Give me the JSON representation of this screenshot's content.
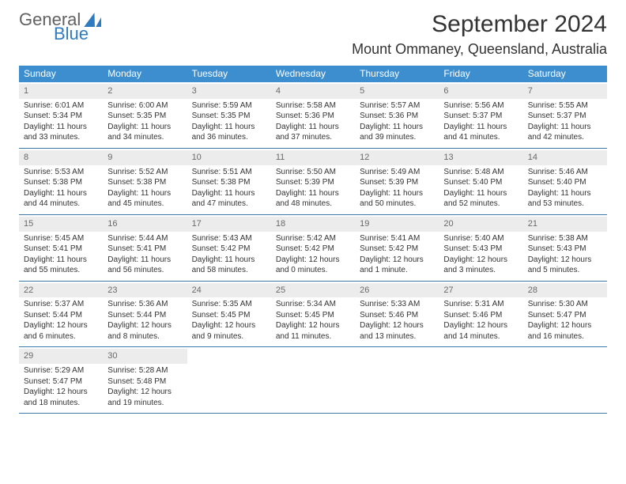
{
  "brand": {
    "word1": "General",
    "word2": "Blue"
  },
  "title": "September 2024",
  "location": "Mount Ommaney, Queensland, Australia",
  "colors": {
    "header_bg": "#3d8ecf",
    "header_text": "#ffffff",
    "band_bg": "#ececec",
    "band_text": "#696969",
    "rule": "#3d78a8",
    "body_text": "#333333",
    "logo_gray": "#616161",
    "logo_blue": "#2f7bbf"
  },
  "font_sizes": {
    "title": 30,
    "subtitle": 18,
    "header": 12,
    "daynum": 11,
    "body": 10
  },
  "weekday_labels": [
    "Sunday",
    "Monday",
    "Tuesday",
    "Wednesday",
    "Thursday",
    "Friday",
    "Saturday"
  ],
  "weeks": [
    [
      {
        "n": "1",
        "sr": "Sunrise: 6:01 AM",
        "ss": "Sunset: 5:34 PM",
        "d1": "Daylight: 11 hours",
        "d2": "and 33 minutes."
      },
      {
        "n": "2",
        "sr": "Sunrise: 6:00 AM",
        "ss": "Sunset: 5:35 PM",
        "d1": "Daylight: 11 hours",
        "d2": "and 34 minutes."
      },
      {
        "n": "3",
        "sr": "Sunrise: 5:59 AM",
        "ss": "Sunset: 5:35 PM",
        "d1": "Daylight: 11 hours",
        "d2": "and 36 minutes."
      },
      {
        "n": "4",
        "sr": "Sunrise: 5:58 AM",
        "ss": "Sunset: 5:36 PM",
        "d1": "Daylight: 11 hours",
        "d2": "and 37 minutes."
      },
      {
        "n": "5",
        "sr": "Sunrise: 5:57 AM",
        "ss": "Sunset: 5:36 PM",
        "d1": "Daylight: 11 hours",
        "d2": "and 39 minutes."
      },
      {
        "n": "6",
        "sr": "Sunrise: 5:56 AM",
        "ss": "Sunset: 5:37 PM",
        "d1": "Daylight: 11 hours",
        "d2": "and 41 minutes."
      },
      {
        "n": "7",
        "sr": "Sunrise: 5:55 AM",
        "ss": "Sunset: 5:37 PM",
        "d1": "Daylight: 11 hours",
        "d2": "and 42 minutes."
      }
    ],
    [
      {
        "n": "8",
        "sr": "Sunrise: 5:53 AM",
        "ss": "Sunset: 5:38 PM",
        "d1": "Daylight: 11 hours",
        "d2": "and 44 minutes."
      },
      {
        "n": "9",
        "sr": "Sunrise: 5:52 AM",
        "ss": "Sunset: 5:38 PM",
        "d1": "Daylight: 11 hours",
        "d2": "and 45 minutes."
      },
      {
        "n": "10",
        "sr": "Sunrise: 5:51 AM",
        "ss": "Sunset: 5:38 PM",
        "d1": "Daylight: 11 hours",
        "d2": "and 47 minutes."
      },
      {
        "n": "11",
        "sr": "Sunrise: 5:50 AM",
        "ss": "Sunset: 5:39 PM",
        "d1": "Daylight: 11 hours",
        "d2": "and 48 minutes."
      },
      {
        "n": "12",
        "sr": "Sunrise: 5:49 AM",
        "ss": "Sunset: 5:39 PM",
        "d1": "Daylight: 11 hours",
        "d2": "and 50 minutes."
      },
      {
        "n": "13",
        "sr": "Sunrise: 5:48 AM",
        "ss": "Sunset: 5:40 PM",
        "d1": "Daylight: 11 hours",
        "d2": "and 52 minutes."
      },
      {
        "n": "14",
        "sr": "Sunrise: 5:46 AM",
        "ss": "Sunset: 5:40 PM",
        "d1": "Daylight: 11 hours",
        "d2": "and 53 minutes."
      }
    ],
    [
      {
        "n": "15",
        "sr": "Sunrise: 5:45 AM",
        "ss": "Sunset: 5:41 PM",
        "d1": "Daylight: 11 hours",
        "d2": "and 55 minutes."
      },
      {
        "n": "16",
        "sr": "Sunrise: 5:44 AM",
        "ss": "Sunset: 5:41 PM",
        "d1": "Daylight: 11 hours",
        "d2": "and 56 minutes."
      },
      {
        "n": "17",
        "sr": "Sunrise: 5:43 AM",
        "ss": "Sunset: 5:42 PM",
        "d1": "Daylight: 11 hours",
        "d2": "and 58 minutes."
      },
      {
        "n": "18",
        "sr": "Sunrise: 5:42 AM",
        "ss": "Sunset: 5:42 PM",
        "d1": "Daylight: 12 hours",
        "d2": "and 0 minutes."
      },
      {
        "n": "19",
        "sr": "Sunrise: 5:41 AM",
        "ss": "Sunset: 5:42 PM",
        "d1": "Daylight: 12 hours",
        "d2": "and 1 minute."
      },
      {
        "n": "20",
        "sr": "Sunrise: 5:40 AM",
        "ss": "Sunset: 5:43 PM",
        "d1": "Daylight: 12 hours",
        "d2": "and 3 minutes."
      },
      {
        "n": "21",
        "sr": "Sunrise: 5:38 AM",
        "ss": "Sunset: 5:43 PM",
        "d1": "Daylight: 12 hours",
        "d2": "and 5 minutes."
      }
    ],
    [
      {
        "n": "22",
        "sr": "Sunrise: 5:37 AM",
        "ss": "Sunset: 5:44 PM",
        "d1": "Daylight: 12 hours",
        "d2": "and 6 minutes."
      },
      {
        "n": "23",
        "sr": "Sunrise: 5:36 AM",
        "ss": "Sunset: 5:44 PM",
        "d1": "Daylight: 12 hours",
        "d2": "and 8 minutes."
      },
      {
        "n": "24",
        "sr": "Sunrise: 5:35 AM",
        "ss": "Sunset: 5:45 PM",
        "d1": "Daylight: 12 hours",
        "d2": "and 9 minutes."
      },
      {
        "n": "25",
        "sr": "Sunrise: 5:34 AM",
        "ss": "Sunset: 5:45 PM",
        "d1": "Daylight: 12 hours",
        "d2": "and 11 minutes."
      },
      {
        "n": "26",
        "sr": "Sunrise: 5:33 AM",
        "ss": "Sunset: 5:46 PM",
        "d1": "Daylight: 12 hours",
        "d2": "and 13 minutes."
      },
      {
        "n": "27",
        "sr": "Sunrise: 5:31 AM",
        "ss": "Sunset: 5:46 PM",
        "d1": "Daylight: 12 hours",
        "d2": "and 14 minutes."
      },
      {
        "n": "28",
        "sr": "Sunrise: 5:30 AM",
        "ss": "Sunset: 5:47 PM",
        "d1": "Daylight: 12 hours",
        "d2": "and 16 minutes."
      }
    ],
    [
      {
        "n": "29",
        "sr": "Sunrise: 5:29 AM",
        "ss": "Sunset: 5:47 PM",
        "d1": "Daylight: 12 hours",
        "d2": "and 18 minutes."
      },
      {
        "n": "30",
        "sr": "Sunrise: 5:28 AM",
        "ss": "Sunset: 5:48 PM",
        "d1": "Daylight: 12 hours",
        "d2": "and 19 minutes."
      },
      null,
      null,
      null,
      null,
      null
    ]
  ]
}
